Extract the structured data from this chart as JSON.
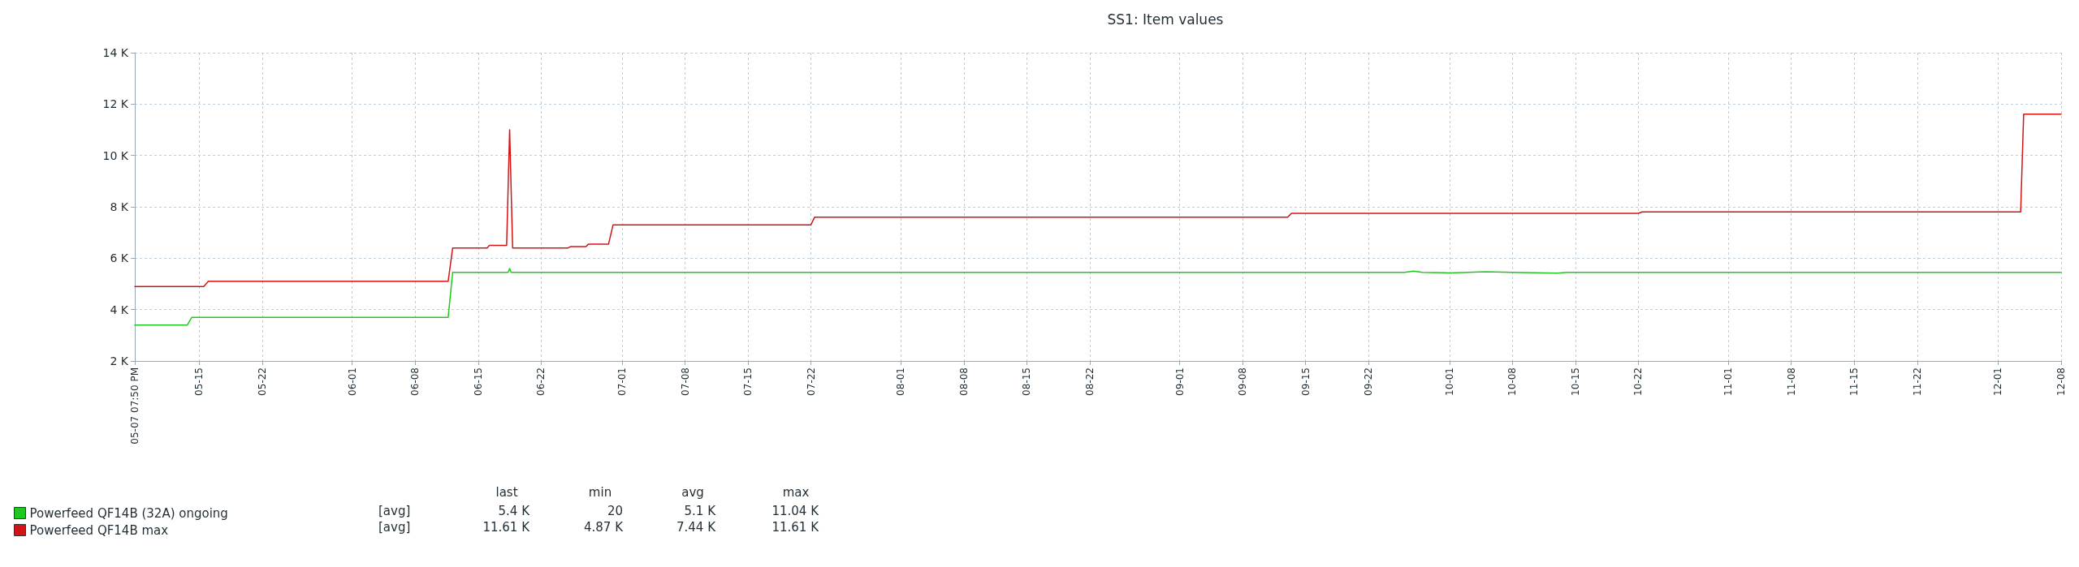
{
  "chart_data": {
    "type": "line",
    "title": "SS1: Item values",
    "series": [
      {
        "name": "Powerfeed QF14B (32A) ongoing",
        "color": "#1ec81e",
        "x": [
          "--05-07T19:50",
          "--05-13T16:00",
          "--05-14T04:00",
          "--06-11T16:00",
          "--06-12T04:00",
          "--06-18T08:00",
          "--06-18T12:00",
          "--06-18T16:00",
          "--09-26",
          "--09-27",
          "--09-28",
          "--10-01",
          "--10-05",
          "--10-08",
          "--10-13",
          "--10-14",
          "--12-08"
        ],
        "values": [
          3400,
          3400,
          3700,
          3700,
          5450,
          5450,
          5600,
          5450,
          5450,
          5500,
          5450,
          5430,
          5470,
          5450,
          5420,
          5450,
          5450
        ]
      },
      {
        "name": "Powerfeed QF14B max",
        "color": "#d21414",
        "x": [
          "--05-07T19:50",
          "--05-15T12:00",
          "--05-16T00:00",
          "--06-11T16:00",
          "--06-12T04:00",
          "--06-16T00:00",
          "--06-16T06:00",
          "--06-18T04:00",
          "--06-18T12:00",
          "--06-18T20:00",
          "--06-25T00:00",
          "--06-25T06:00",
          "--06-27T00:00",
          "--06-27T06:00",
          "--06-29T12:00",
          "--06-30T00:00",
          "--07-22T00:00",
          "--07-22T10:00",
          "--09-13T00:00",
          "--09-13T10:00",
          "--10-22T00:00",
          "--10-22T10:00",
          "--12-03T12:00",
          "--12-03T20:00",
          "--12-08"
        ],
        "values": [
          4900,
          4900,
          5100,
          5100,
          6400,
          6400,
          6500,
          6500,
          11000,
          6400,
          6400,
          6450,
          6450,
          6550,
          6550,
          7300,
          7300,
          7600,
          7600,
          7750,
          7750,
          7800,
          7800,
          11610,
          11610
        ]
      }
    ],
    "xlim": [
      "--05-07T19:50",
      "--12-08"
    ],
    "xticks": [
      {
        "value": "--05-07T19:50",
        "label": "05-07 07:50 PM"
      },
      {
        "value": "--05-15",
        "label": "05-15"
      },
      {
        "value": "--05-22",
        "label": "05-22"
      },
      {
        "value": "--06-01",
        "label": "06-01"
      },
      {
        "value": "--06-08",
        "label": "06-08"
      },
      {
        "value": "--06-15",
        "label": "06-15"
      },
      {
        "value": "--06-22",
        "label": "06-22"
      },
      {
        "value": "--07-01",
        "label": "07-01"
      },
      {
        "value": "--07-08",
        "label": "07-08"
      },
      {
        "value": "--07-15",
        "label": "07-15"
      },
      {
        "value": "--07-22",
        "label": "07-22"
      },
      {
        "value": "--08-01",
        "label": "08-01"
      },
      {
        "value": "--08-08",
        "label": "08-08"
      },
      {
        "value": "--08-15",
        "label": "08-15"
      },
      {
        "value": "--08-22",
        "label": "08-22"
      },
      {
        "value": "--09-01",
        "label": "09-01"
      },
      {
        "value": "--09-08",
        "label": "09-08"
      },
      {
        "value": "--09-15",
        "label": "09-15"
      },
      {
        "value": "--09-22",
        "label": "09-22"
      },
      {
        "value": "--10-01",
        "label": "10-01"
      },
      {
        "value": "--10-08",
        "label": "10-08"
      },
      {
        "value": "--10-15",
        "label": "10-15"
      },
      {
        "value": "--10-22",
        "label": "10-22"
      },
      {
        "value": "--11-01",
        "label": "11-01"
      },
      {
        "value": "--11-08",
        "label": "11-08"
      },
      {
        "value": "--11-15",
        "label": "11-15"
      },
      {
        "value": "--11-22",
        "label": "11-22"
      },
      {
        "value": "--12-01",
        "label": "12-01"
      },
      {
        "value": "--12-08",
        "label": "12-08"
      }
    ],
    "ylim": [
      2000,
      14000
    ],
    "yticks": [
      {
        "value": 2000,
        "label": "2 K"
      },
      {
        "value": 4000,
        "label": "4 K"
      },
      {
        "value": 6000,
        "label": "6 K"
      },
      {
        "value": 8000,
        "label": "8 K"
      },
      {
        "value": 10000,
        "label": "10 K"
      },
      {
        "value": 12000,
        "label": "12 K"
      },
      {
        "value": 14000,
        "label": "14 K"
      }
    ],
    "grid": true,
    "legend": "bottom left",
    "marker": "none",
    "line_style": "solid",
    "annotations": [
      "last",
      "min",
      "avg",
      "max",
      "[avg]",
      "5.4 K",
      "20",
      "5.1 K",
      "11.04 K",
      "[avg]",
      "11.61 K",
      "4.87 K",
      "7.44 K",
      "11.61 K"
    ]
  }
}
